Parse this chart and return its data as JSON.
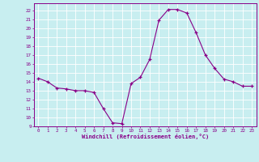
{
  "x": [
    0,
    1,
    2,
    3,
    4,
    5,
    6,
    7,
    8,
    9,
    10,
    11,
    12,
    13,
    14,
    15,
    16,
    17,
    18,
    19,
    20,
    21,
    22,
    23
  ],
  "y": [
    14.4,
    14.0,
    13.3,
    13.2,
    13.0,
    13.0,
    12.8,
    11.0,
    9.4,
    9.3,
    13.8,
    14.5,
    16.5,
    20.9,
    22.1,
    22.1,
    21.7,
    19.5,
    17.0,
    15.5,
    14.3,
    14.0,
    13.5,
    13.5
  ],
  "line_color": "#880088",
  "marker": "+",
  "marker_color": "#880088",
  "bg_color": "#c8eef0",
  "grid_color": "#ffffff",
  "xlabel": "Windchill (Refroidissement éolien,°C)",
  "xlabel_color": "#880088",
  "tick_color": "#880088",
  "ylabel_ticks": [
    9,
    10,
    11,
    12,
    13,
    14,
    15,
    16,
    17,
    18,
    19,
    20,
    21,
    22
  ],
  "xlim": [
    -0.5,
    23.5
  ],
  "ylim": [
    9,
    22.8
  ]
}
